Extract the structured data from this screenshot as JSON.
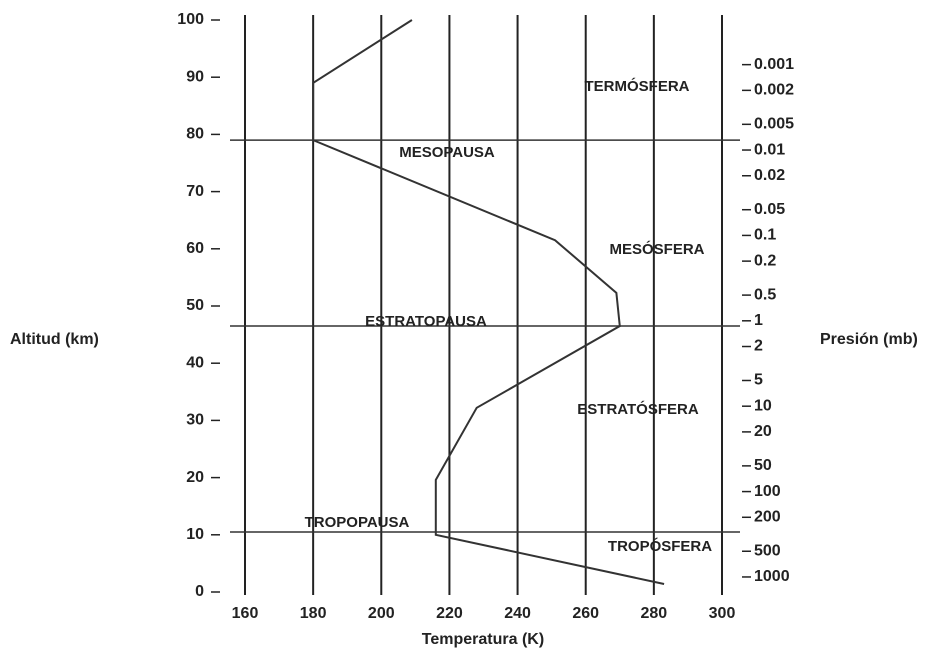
{
  "chart_data": {
    "type": "line",
    "x_label": "Temperatura (K)",
    "y_label": "Altitud (km)",
    "y2_label": "Presión (mb)",
    "xlim": [
      160,
      300
    ],
    "xticks": [
      160,
      180,
      200,
      220,
      240,
      260,
      280,
      300
    ],
    "ylim": [
      0,
      100
    ],
    "yticks": [
      0,
      10,
      20,
      30,
      40,
      50,
      60,
      70,
      80,
      90,
      100
    ],
    "y2_log": true,
    "y2lim": [
      1500,
      0.0003
    ],
    "y2ticks": [
      0.001,
      0.002,
      0.005,
      0.01,
      0.02,
      0.05,
      0.1,
      0.2,
      0.5,
      1,
      2,
      5,
      10,
      20,
      50,
      100,
      200,
      500,
      1000
    ],
    "grid": true,
    "series": [
      {
        "name": "Temperatura",
        "color": "#333333",
        "x": [
          209,
          180,
          180,
          251,
          269,
          270,
          228,
          216,
          216,
          283
        ],
        "values": [
          100,
          89,
          79,
          61.5,
          52.3,
          46.5,
          32.2,
          19.6,
          10,
          1.4
        ]
      }
    ],
    "reference_lines": [
      79,
      46.5,
      10.5
    ],
    "annotations": [
      "TERMÓSFERA",
      "MESOPAUSA",
      "MESÓSFERA",
      "ESTRATOPAUSA",
      "ESTRATÓSFERA",
      "TROPOPAUSA",
      "TROPÓSFERA"
    ]
  }
}
